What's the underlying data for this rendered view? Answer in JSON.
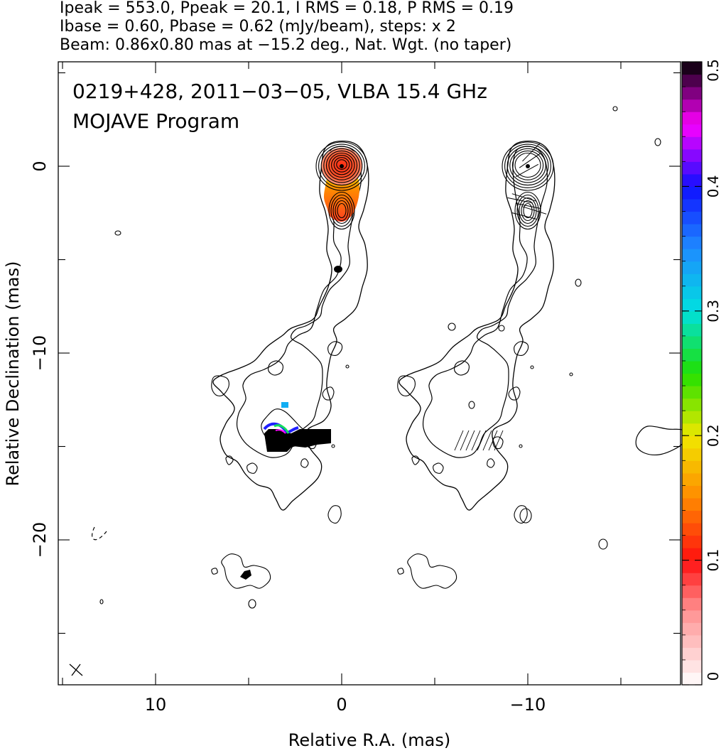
{
  "header": {
    "line1": "Ipeak = 553.0, Ppeak = 20.1, I RMS = 0.18, P RMS = 0.19",
    "line2": "Ibase = 0.60, Pbase = 0.62 (mJy/beam), steps: x 2",
    "line3": "Beam: 0.86x0.80 mas at −15.2 deg., Nat. Wgt. (no taper)"
  },
  "chart_data": {
    "type": "heatmap",
    "title": "0219+428, 2011−03−05, VLBA 15.4 GHz",
    "subtitle": "MOJAVE Program",
    "xlabel": "Relative R.A. (mas)",
    "ylabel": "Relative Declination (mas)",
    "xlim": [
      15,
      -18
    ],
    "ylim": [
      -27,
      5.6
    ],
    "x_ticks": [
      {
        "value": 10,
        "label": "10"
      },
      {
        "value": 0,
        "label": "0"
      },
      {
        "value": -10,
        "label": "−10"
      }
    ],
    "y_ticks": [
      {
        "value": 0,
        "label": "0"
      },
      {
        "value": -10,
        "label": "−10"
      },
      {
        "value": -20,
        "label": "−20"
      }
    ],
    "colorbar": {
      "range": [
        0,
        0.5
      ],
      "ticks": [
        {
          "value": 0,
          "label": "0"
        },
        {
          "value": 0.1,
          "label": "0.1"
        },
        {
          "value": 0.2,
          "label": "0.2"
        },
        {
          "value": 0.3,
          "label": "0.3"
        },
        {
          "value": 0.4,
          "label": "0.4"
        },
        {
          "value": 0.5,
          "label": "0.5"
        }
      ],
      "stops": [
        {
          "v": 0.0,
          "color": "#ffffff"
        },
        {
          "v": 0.06,
          "color": "#ff9090"
        },
        {
          "v": 0.1,
          "color": "#ff1010"
        },
        {
          "v": 0.15,
          "color": "#ff8a00"
        },
        {
          "v": 0.2,
          "color": "#f0e800"
        },
        {
          "v": 0.25,
          "color": "#20e000"
        },
        {
          "v": 0.3,
          "color": "#00e0e0"
        },
        {
          "v": 0.35,
          "color": "#1e8cff"
        },
        {
          "v": 0.4,
          "color": "#1010ff"
        },
        {
          "v": 0.45,
          "color": "#ff00ff"
        },
        {
          "v": 0.5,
          "color": "#000000"
        }
      ]
    },
    "panels": [
      {
        "name": "total-intensity-with-fractional-polarization",
        "x_offset": 0
      },
      {
        "name": "total-intensity-with-evpa",
        "x_offset": -10
      }
    ],
    "core": {
      "ra": 0,
      "dec": 0
    },
    "secondary_component": {
      "ra": 0,
      "dec": -2.3
    },
    "polarization_patches": [
      {
        "ra": 3.2,
        "dec": -14.6,
        "frac": 0.5
      },
      {
        "ra": 3.5,
        "dec": -14.2,
        "frac": 0.38
      },
      {
        "ra": 3.0,
        "dec": -12.8,
        "frac": 0.33
      },
      {
        "ra": 0.3,
        "dec": -5.5,
        "frac": 0.5
      },
      {
        "ra": 5.0,
        "dec": -21.9,
        "frac": 0.5
      }
    ],
    "grid": false
  }
}
